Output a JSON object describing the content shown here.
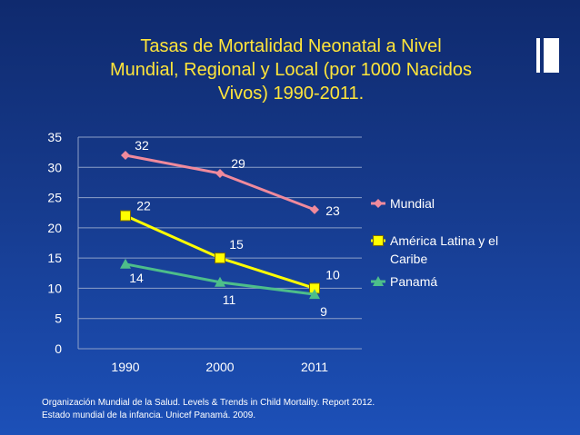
{
  "slide": {
    "title_lines": [
      "Tasas de Mortalidad Neonatal a Nivel",
      "Mundial, Regional y Local (por 1000 Nacidos",
      "Vivos) 1990-2011."
    ],
    "source_lines": [
      "Organización Mundial de la Salud. Levels & Trends in Child Mortality. Report 2012.",
      "Estado mundial de la infancia. Unicef Panamá. 2009."
    ]
  },
  "chart_data": {
    "type": "line",
    "categories": [
      "1990",
      "2000",
      "2011"
    ],
    "ylim": [
      0,
      35
    ],
    "yticks": [
      "0",
      "5",
      "10",
      "15",
      "20",
      "25",
      "30",
      "35"
    ],
    "grid": true,
    "legend_position": "right",
    "series": [
      {
        "name": "Mundial",
        "values": [
          32,
          29,
          23
        ],
        "color": "#f08a9c",
        "marker": "diamond"
      },
      {
        "name": "América Latina y el Caribe",
        "values": [
          22,
          15,
          10
        ],
        "color": "#ffff00",
        "marker": "square"
      },
      {
        "name": "Panamá",
        "values": [
          14,
          11,
          9
        ],
        "color": "#4dbe8a",
        "marker": "triangle"
      }
    ]
  }
}
